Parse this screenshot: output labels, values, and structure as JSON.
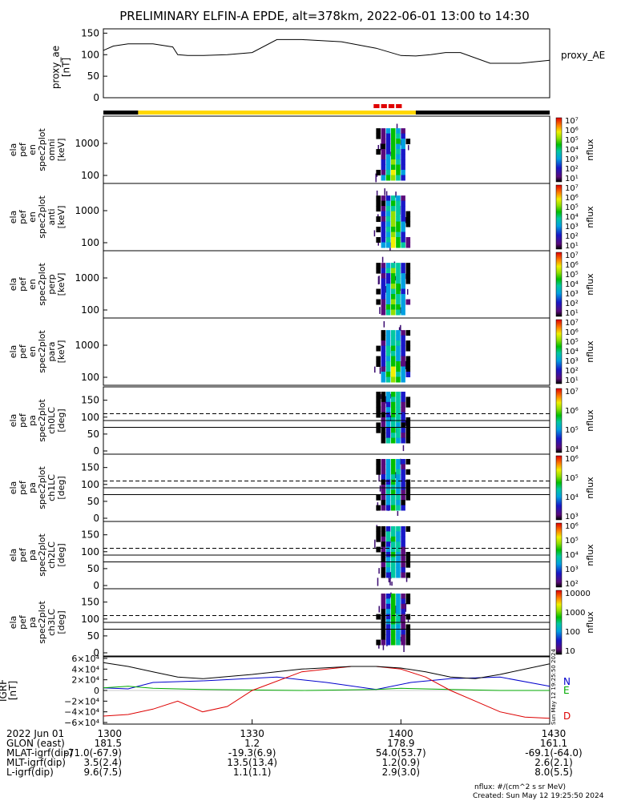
{
  "title": "PRELIMINARY ELFIN-A EPDE, alt=378km, 2022-06-01 13:00 to 14:30",
  "chart_data": {
    "type": "heatmap",
    "x_range": [
      "13:00",
      "14:30"
    ],
    "ae_panel": {
      "ylabel": "proxy_ae\n[nT]",
      "legend": "proxy_AE",
      "yticks": [
        "150",
        "100",
        "50",
        "0"
      ],
      "ylim": [
        0,
        160
      ],
      "x_min": [
        0,
        2,
        5,
        10,
        14,
        15,
        17,
        20,
        25,
        30,
        35,
        40,
        48,
        55,
        60,
        63,
        66,
        69,
        72,
        78,
        84,
        90
      ],
      "values": [
        110,
        120,
        125,
        125,
        118,
        100,
        98,
        98,
        100,
        105,
        135,
        135,
        130,
        115,
        98,
        97,
        100,
        105,
        105,
        80,
        80,
        87
      ]
    },
    "science_bar": {
      "track_color": "#000000",
      "zone_color": "#ffd700",
      "zone_start_min": 7.0,
      "zone_end_min": 63.0,
      "burst_color": "#e00000",
      "burst_start_min": 54.5,
      "burst_end_min": 60.5
    },
    "energy_panels": [
      {
        "ylabel": "ela\npef\nen\nspec2plot\nomni\n[keV]",
        "yticks": [
          "1000",
          "100"
        ]
      },
      {
        "ylabel": "ela\npef\nen\nspec2plot\nanti\n[keV]",
        "yticks": [
          "1000",
          "100"
        ]
      },
      {
        "ylabel": "ela\npef\nen\nspec2plot\nperp\n[keV]",
        "yticks": [
          "1000",
          "100"
        ]
      },
      {
        "ylabel": "ela\npef\nen\nspec2plot\npara\n[keV]",
        "yticks": [
          "1000",
          "100"
        ]
      }
    ],
    "energy_colorbar": {
      "label": "nflux",
      "ticks": [
        "10⁷",
        "10⁶",
        "10⁵",
        "10⁴",
        "10³",
        "10²",
        "10¹"
      ]
    },
    "pa_panels": [
      {
        "ylabel": "ela\npef\npa\nspec2plot\nch0LC\n[deg]",
        "yticks": [
          "150",
          "100",
          "50",
          "0"
        ],
        "colorbar_ticks": [
          "10⁷",
          "10⁶",
          "10⁵",
          "10⁴"
        ]
      },
      {
        "ylabel": "ela\npef\npa\nspec2plot\nch1LC\n[deg]",
        "yticks": [
          "150",
          "100",
          "50",
          "0"
        ],
        "colorbar_ticks": [
          "10⁶",
          "10⁵",
          "10⁴",
          "10³"
        ]
      },
      {
        "ylabel": "ela\npef\npa\nspec2plot\nch2LC\n[deg]",
        "yticks": [
          "150",
          "100",
          "50",
          "0"
        ],
        "colorbar_ticks": [
          "10⁶",
          "10⁵",
          "10⁴",
          "10³",
          "10²"
        ]
      },
      {
        "ylabel": "ela\npef\npa\nspec2plot\nch3LC\n[deg]",
        "yticks": [
          "150",
          "100",
          "50",
          "0"
        ],
        "colorbar_ticks": [
          "10000",
          "1000",
          "100",
          "10"
        ]
      }
    ],
    "pa_colorbar_label": "nflux",
    "pa_loss_cone_deg": 110,
    "pa_ref_lines_deg": [
      90,
      70
    ],
    "spectra_time_min": [
      55,
      56,
      57,
      58,
      59,
      60,
      61
    ],
    "igrf_panel": {
      "ylabel": "IGRF\n[nT]",
      "yticks": [
        "6×10⁴",
        "4×10⁴",
        "2×10⁴",
        "0",
        "−2×10⁴",
        "−4×10⁴",
        "−6×10⁴"
      ],
      "ylim": [
        -60000,
        60000
      ],
      "legend": [
        "N",
        "E",
        "D"
      ],
      "series": [
        {
          "name": "N",
          "color": "#0000cc",
          "x_min": [
            0,
            5,
            10,
            20,
            35,
            45,
            55,
            62,
            70,
            80,
            90
          ],
          "values": [
            5000,
            3000,
            15000,
            18000,
            25000,
            15000,
            2000,
            15000,
            22000,
            25000,
            8000
          ]
        },
        {
          "name": "E",
          "color": "#00aa00",
          "x_min": [
            0,
            5,
            10,
            20,
            40,
            55,
            60,
            70,
            80,
            90
          ],
          "values": [
            5000,
            8000,
            4000,
            2000,
            0,
            2000,
            4000,
            2000,
            0,
            0
          ]
        },
        {
          "name": "D",
          "color": "#dd0000",
          "x_min": [
            0,
            5,
            10,
            15,
            20,
            25,
            30,
            40,
            50,
            55,
            60,
            65,
            70,
            75,
            80,
            85,
            90
          ],
          "values": [
            -48000,
            -45000,
            -35000,
            -20000,
            -40000,
            -30000,
            0,
            35000,
            45000,
            45000,
            40000,
            25000,
            0,
            -20000,
            -40000,
            -50000,
            -52000
          ]
        },
        {
          "name": "|B|",
          "color": "#000000",
          "x_min": [
            0,
            5,
            10,
            15,
            20,
            30,
            40,
            50,
            55,
            60,
            65,
            70,
            75,
            80,
            90
          ],
          "values": [
            52000,
            45000,
            35000,
            25000,
            22000,
            30000,
            40000,
            45000,
            45000,
            42000,
            35000,
            25000,
            22000,
            30000,
            50000
          ]
        }
      ]
    },
    "footer": {
      "rows": [
        {
          "label": "2022 Jun 01",
          "values": [
            "1300",
            "1330",
            "1400",
            "1430"
          ]
        },
        {
          "label": "GLON (east)",
          "values": [
            "181.5",
            "1.2",
            "178.9",
            "161.1"
          ]
        },
        {
          "label": "MLAT-igrf(dip)",
          "values": [
            "-71.0(-67.9)",
            "-19.3(6.9)",
            "54.0(53.7)",
            "-69.1(-64.0)"
          ]
        },
        {
          "label": "MLT-igrf(dip)",
          "values": [
            "3.5(2.4)",
            "13.5(13.4)",
            "1.2(0.9)",
            "2.6(2.1)"
          ]
        },
        {
          "label": "L-igrf(dip)",
          "values": [
            "9.6(7.5)",
            "1.1(1.1)",
            "2.9(3.0)",
            "8.0(5.5)"
          ]
        }
      ],
      "tick_minutes": [
        0,
        30,
        60,
        90
      ],
      "units_note": "nflux: #/(cm^2 s sr MeV)",
      "created": "Created: Sun May 12 19:25:50 2024",
      "side_stamp": "Sun May 12 19:25:50 2024"
    }
  }
}
